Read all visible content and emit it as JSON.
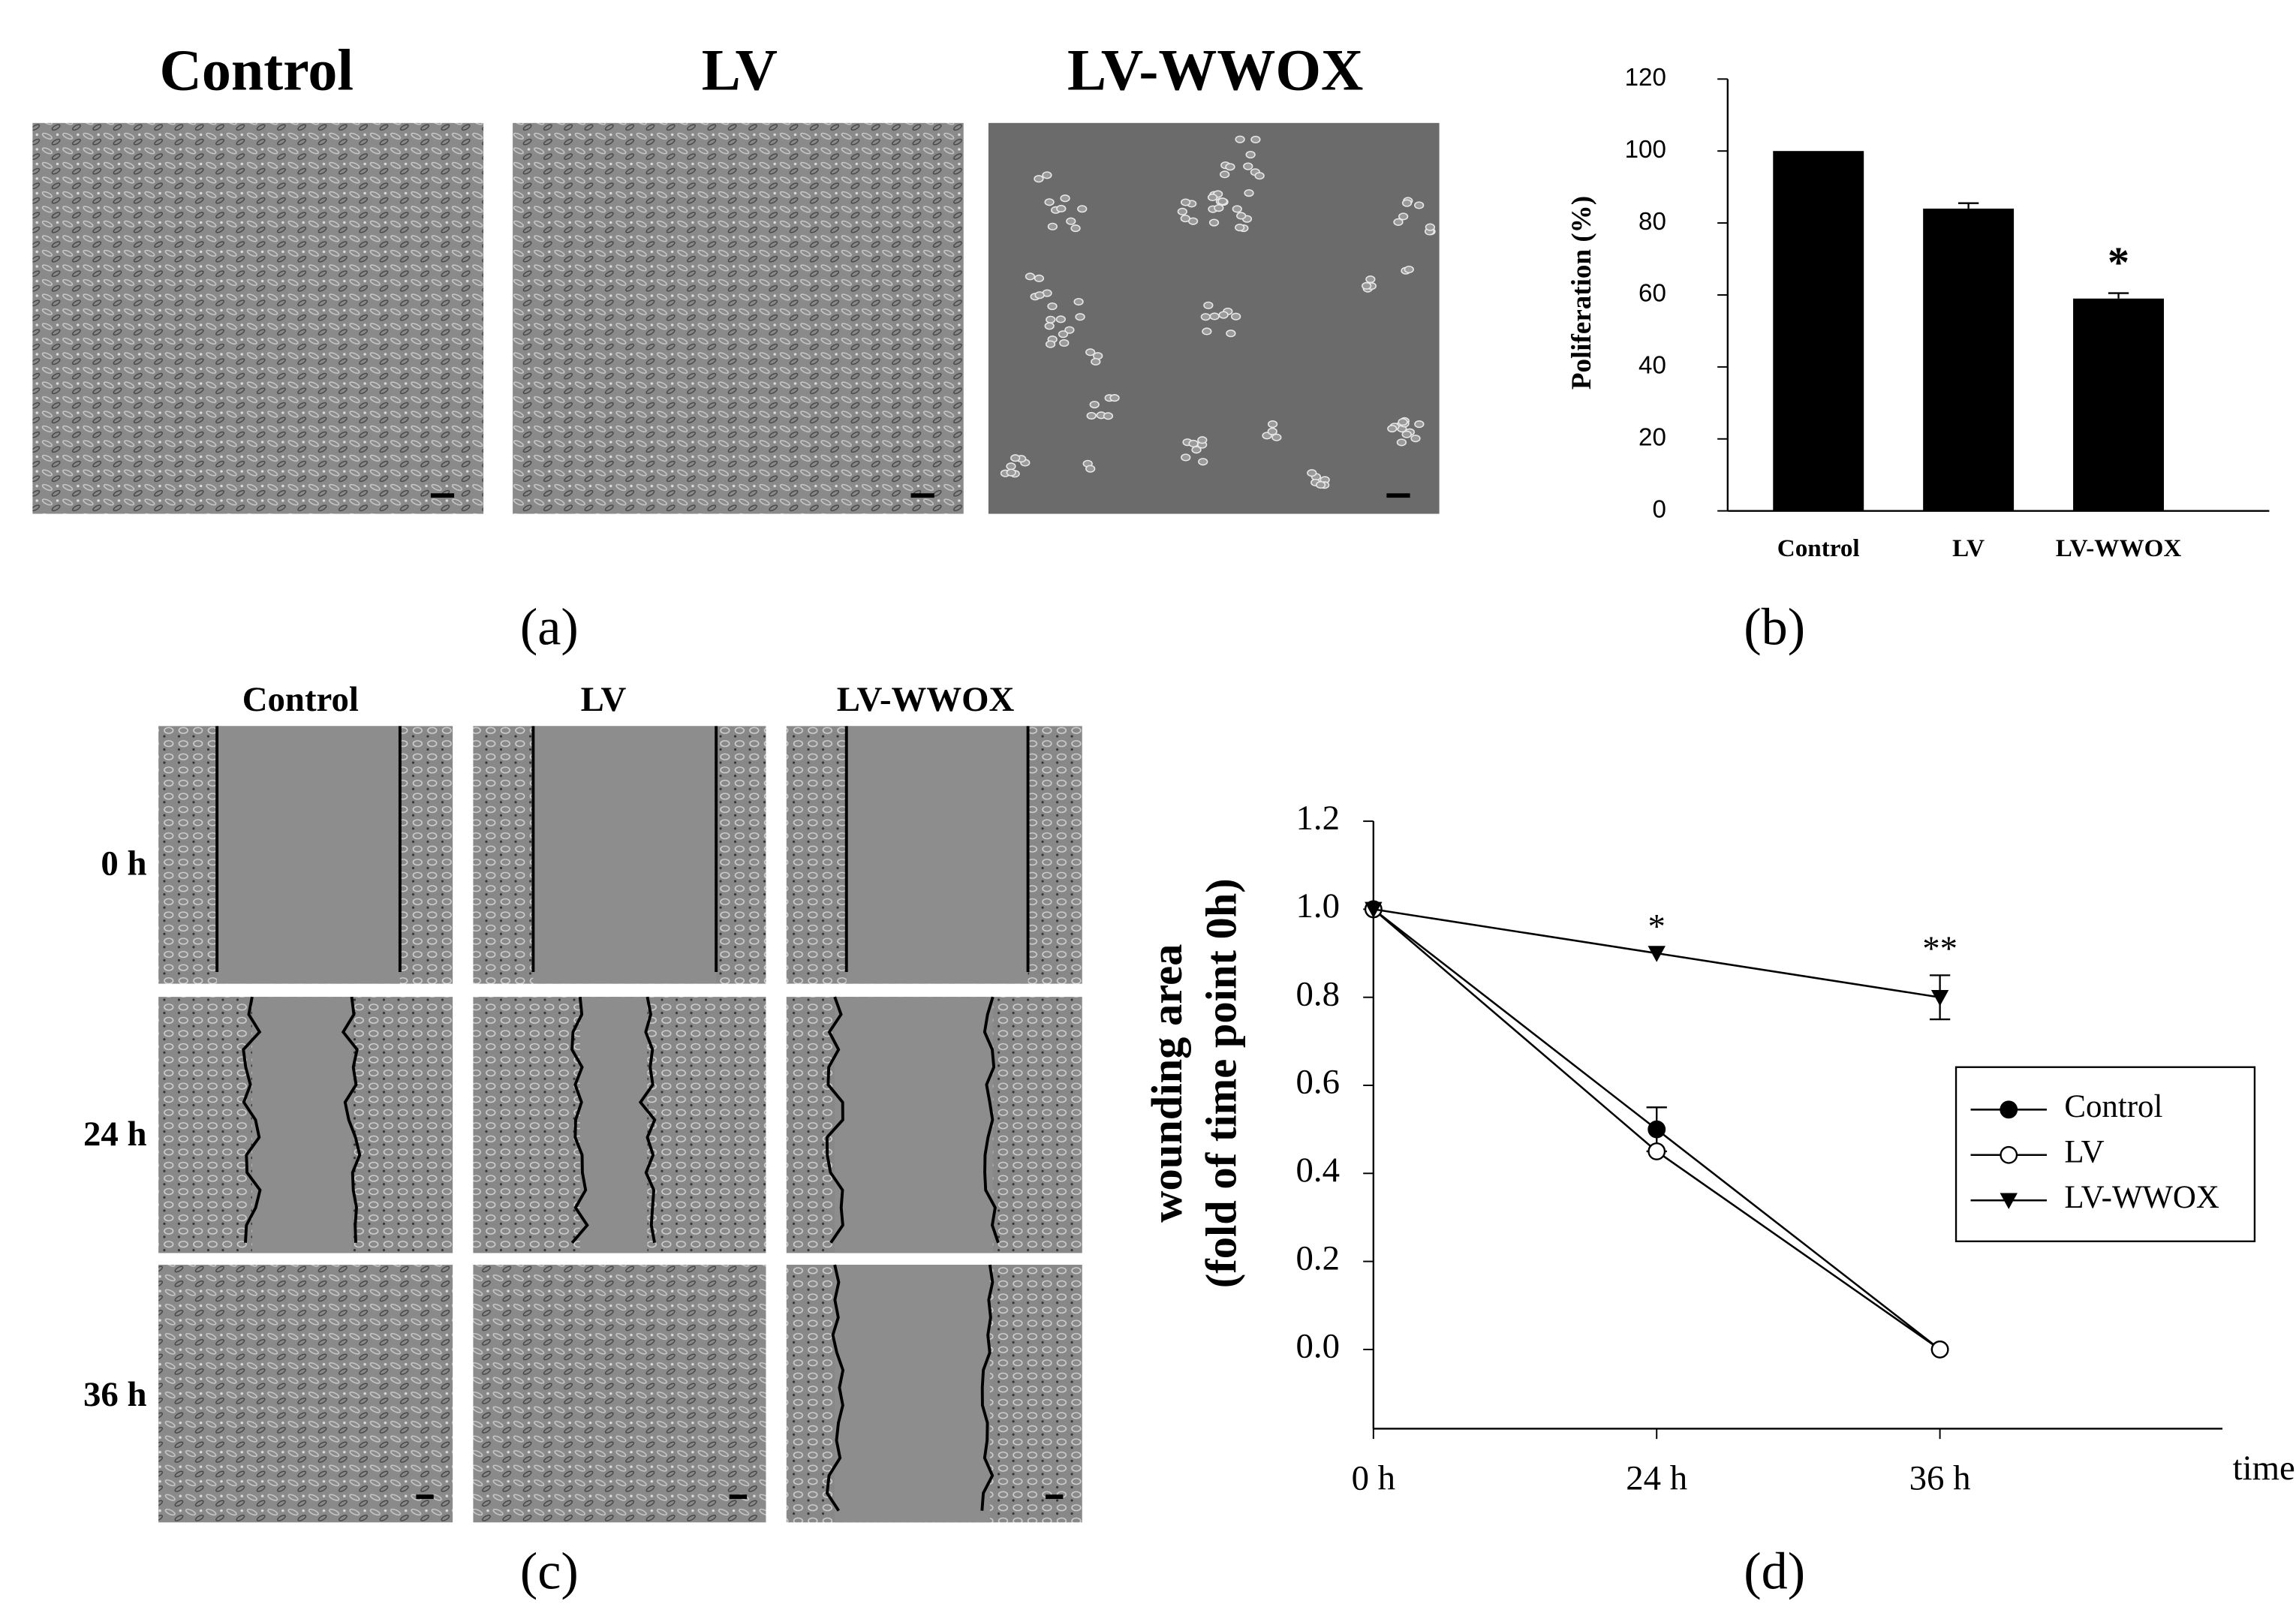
{
  "panels": {
    "a": {
      "label": "(a)",
      "titles": [
        "Control",
        "LV",
        "LV-WWOX"
      ]
    },
    "c": {
      "label": "(c)",
      "column_titles": [
        "Control",
        "LV",
        "LV-WWOX"
      ],
      "row_labels": [
        "0 h",
        "24 h",
        "36 h"
      ]
    }
  },
  "chart_data": [
    {
      "type": "bar",
      "panel_label": "(b)",
      "ylabel": "Poliferation (%)",
      "categories": [
        "Control",
        "LV",
        "LV-WWOX"
      ],
      "values": [
        100,
        84,
        59
      ],
      "errors": [
        null,
        1.5,
        1.5
      ],
      "color": "#000000",
      "ylim": [
        0,
        120
      ],
      "yticks": [
        0,
        20,
        40,
        60,
        80,
        100,
        120
      ],
      "annotations": [
        {
          "text": "*",
          "x": "LV-WWOX"
        }
      ]
    },
    {
      "type": "line",
      "panel_label": "(d)",
      "xlabel": "time",
      "ylabel": [
        "wounding area",
        "(fold of time point 0h)"
      ],
      "categories": [
        "0 h",
        "24 h",
        "36 h"
      ],
      "series": [
        {
          "name": "Control",
          "color": "#000000",
          "marker": "filled-circle",
          "values": [
            1.0,
            0.5,
            0.0
          ],
          "errors": [
            null,
            0.05,
            null
          ]
        },
        {
          "name": "LV",
          "color": "#000000",
          "marker": "open-circle",
          "values": [
            1.0,
            0.45,
            0.0
          ],
          "errors": [
            null,
            null,
            null
          ]
        },
        {
          "name": "LV-WWOX",
          "color": "#000000",
          "marker": "triangle-down",
          "values": [
            1.0,
            0.9,
            0.8
          ],
          "errors": [
            null,
            null,
            0.05
          ]
        }
      ],
      "ylim": [
        -0.18,
        1.2
      ],
      "yticks": [
        {
          "value": 0,
          "label": "0.0"
        },
        0.2,
        0.4,
        0.6,
        0.8,
        {
          "value": 1,
          "label": "1.0"
        },
        1.2
      ],
      "legend": "right",
      "annotations": [
        {
          "text": "*",
          "x": "24 h",
          "series": "LV-WWOX"
        },
        {
          "text": "**",
          "x": "36 h",
          "series": "LV-WWOX"
        }
      ]
    }
  ]
}
